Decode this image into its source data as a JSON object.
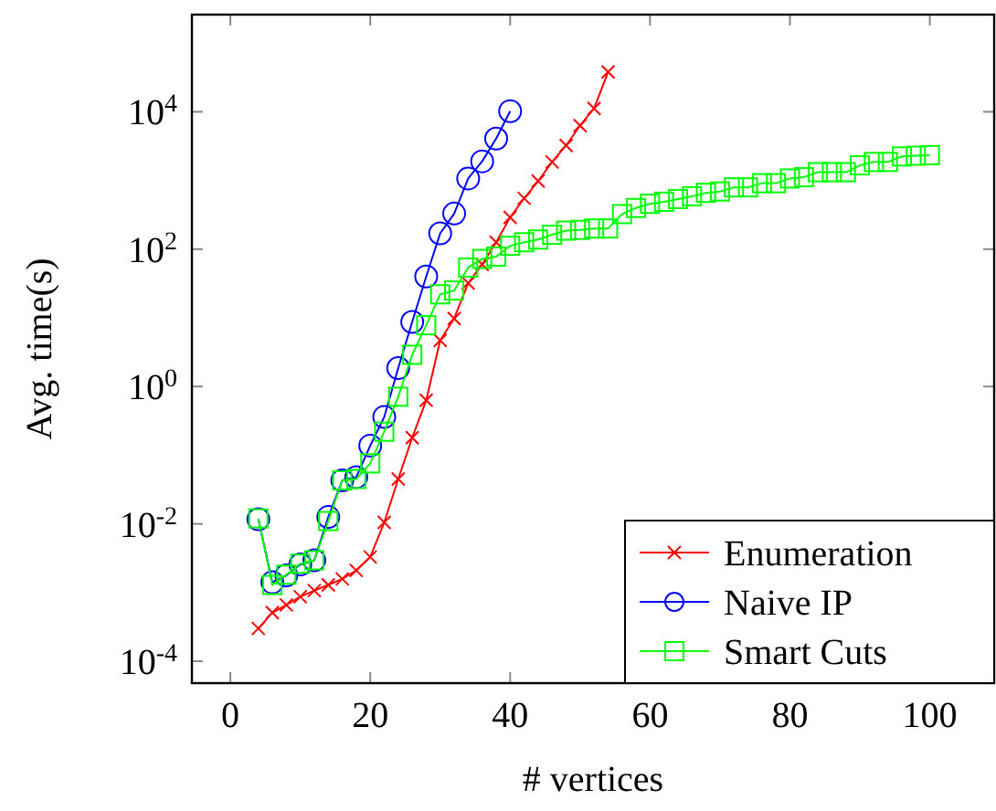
{
  "chart_data": {
    "type": "line",
    "xlabel": "# vertices",
    "ylabel": "Avg. time(s)",
    "log": "y",
    "grid": false,
    "legend": "bottom right",
    "xlim": [
      -5.5,
      109.2
    ],
    "xticks": [
      0,
      20,
      40,
      60,
      80,
      100
    ],
    "ylim": [
      4.8e-05,
      260000.0
    ],
    "yticks": [
      {
        "value": 0.0001,
        "label": "10$^{-4}$"
      },
      {
        "value": 0.01,
        "label": "10$^{-2}$"
      },
      {
        "value": 1,
        "label": "10$^{0}$"
      },
      {
        "value": 100,
        "label": "10$^{2}$"
      },
      {
        "value": 10000,
        "label": "10$^{4}$"
      }
    ],
    "series": [
      {
        "name": "Enumeration",
        "color": "#ff0000",
        "marker": "cross",
        "x": [
          4,
          6,
          8,
          10,
          12,
          14,
          16,
          18,
          20,
          22,
          24,
          26,
          28,
          30,
          32,
          34,
          36,
          38,
          40,
          42,
          44,
          46,
          48,
          50,
          52,
          54
        ],
        "values": [
          0.0003,
          0.00051,
          0.00066,
          0.00087,
          0.00107,
          0.00129,
          0.00158,
          0.0021,
          0.0033,
          0.0105,
          0.045,
          0.18,
          0.63,
          4.7,
          9.8,
          32,
          60,
          126,
          290,
          550,
          980,
          1860,
          3240,
          6300,
          11200,
          38000
        ]
      },
      {
        "name": "Naive IP",
        "color": "#0000ff",
        "marker": "circle",
        "x": [
          4,
          6,
          8,
          10,
          12,
          14,
          16,
          18,
          20,
          22,
          24,
          26,
          28,
          30,
          32,
          34,
          36,
          38,
          40
        ],
        "values": [
          0.0117,
          0.00141,
          0.00178,
          0.00257,
          0.00295,
          0.0126,
          0.043,
          0.048,
          0.138,
          0.36,
          1.86,
          8.7,
          40,
          170,
          330,
          1070,
          1900,
          4070,
          10200
        ]
      },
      {
        "name": "Smart Cuts",
        "color": "#00ff00",
        "marker": "square",
        "x": [
          4,
          6,
          8,
          10,
          12,
          14,
          16,
          18,
          20,
          22,
          24,
          26,
          28,
          30,
          32,
          34,
          36,
          38,
          40,
          42,
          44,
          46,
          48,
          50,
          52,
          54,
          56,
          58,
          60,
          62,
          64,
          66,
          68,
          70,
          72,
          74,
          76,
          78,
          80,
          82,
          84,
          86,
          88,
          90,
          92,
          94,
          96,
          98,
          100
        ],
        "values": [
          0.012,
          0.00129,
          0.00182,
          0.00263,
          0.00295,
          0.011,
          0.043,
          0.045,
          0.076,
          0.22,
          0.71,
          2.9,
          7.8,
          22,
          25,
          54,
          72,
          78,
          112,
          126,
          138,
          162,
          186,
          191,
          200,
          200,
          324,
          398,
          457,
          490,
          537,
          589,
          661,
          692,
          794,
          794,
          912,
          912,
          1070,
          1120,
          1320,
          1320,
          1320,
          1660,
          1860,
          1860,
          2240,
          2290,
          2340
        ]
      }
    ]
  }
}
